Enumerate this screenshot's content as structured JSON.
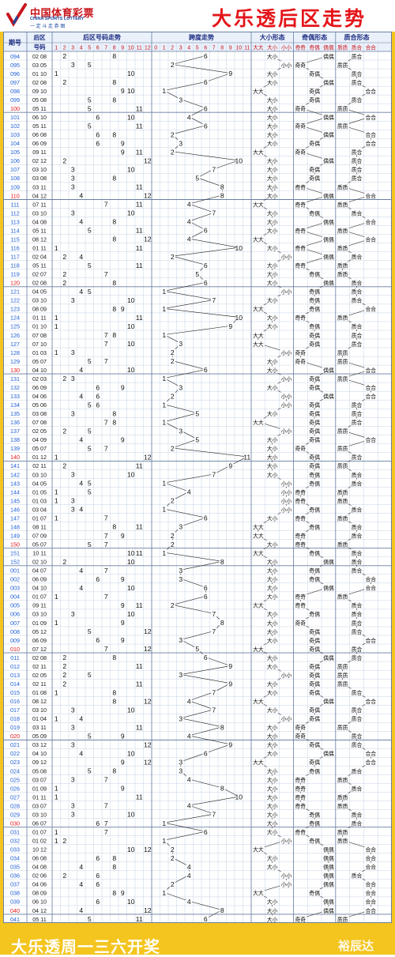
{
  "header": {
    "logo_cn": "中国体育彩票",
    "logo_en": "CHINA SPORTS LOTTERY",
    "logo_slogan": "一 定 斗 走 券 图",
    "title": "大乐透后区走势"
  },
  "footer": {
    "title": "大乐透周一三六开奖",
    "author": "裕辰达"
  },
  "colors": {
    "frame": "#f4c51f",
    "title_red": "#e4151a",
    "issue_blue": "#1e5fd6",
    "grid": "#c5d3e6",
    "group_line": "#6a7fa0"
  },
  "chart_data": {
    "type": "table",
    "headers": {
      "issue": "期号",
      "back_line1": "后区",
      "back_line2": "号码",
      "trend": "后区号码走势",
      "span": "跨度走势",
      "size": "大小形态",
      "parity": "奇偶形态",
      "prime": "质合形态"
    },
    "size_sub": [
      "大大",
      "大小",
      "小小"
    ],
    "parity_sub": [
      "奇奇",
      "奇偶",
      "偶偶"
    ],
    "prime_sub": [
      "质质",
      "质合",
      "合合"
    ],
    "rows": [
      [
        "094",
        [
          2,
          8
        ]
      ],
      [
        "095",
        [
          3,
          5
        ]
      ],
      [
        "096",
        [
          1,
          10
        ]
      ],
      [
        "097",
        [
          2,
          8
        ]
      ],
      [
        "098",
        [
          9,
          10
        ]
      ],
      [
        "099",
        [
          5,
          8
        ]
      ],
      [
        "100",
        [
          5,
          11
        ]
      ],
      [
        "101",
        [
          6,
          10
        ]
      ],
      [
        "102",
        [
          5,
          11
        ]
      ],
      [
        "103",
        [
          6,
          8
        ]
      ],
      [
        "104",
        [
          6,
          9
        ]
      ],
      [
        "105",
        [
          9,
          11
        ]
      ],
      [
        "106",
        [
          2,
          12
        ]
      ],
      [
        "107",
        [
          3,
          10
        ]
      ],
      [
        "108",
        [
          3,
          8
        ]
      ],
      [
        "109",
        [
          3,
          11
        ]
      ],
      [
        "110",
        [
          4,
          12
        ]
      ],
      [
        "111",
        [
          7,
          11
        ]
      ],
      [
        "112",
        [
          3,
          10
        ]
      ],
      [
        "113",
        [
          4,
          8
        ]
      ],
      [
        "114",
        [
          5,
          11
        ]
      ],
      [
        "115",
        [
          8,
          12
        ]
      ],
      [
        "116",
        [
          1,
          11
        ]
      ],
      [
        "117",
        [
          2,
          4
        ]
      ],
      [
        "118",
        [
          5,
          11
        ]
      ],
      [
        "119",
        [
          2,
          7
        ]
      ],
      [
        "120",
        [
          2,
          8
        ]
      ],
      [
        "121",
        [
          4,
          5
        ]
      ],
      [
        "122",
        [
          3,
          10
        ]
      ],
      [
        "123",
        [
          8,
          9
        ]
      ],
      [
        "124",
        [
          1,
          11
        ]
      ],
      [
        "125",
        [
          1,
          10
        ]
      ],
      [
        "126",
        [
          7,
          8
        ]
      ],
      [
        "127",
        [
          7,
          10
        ]
      ],
      [
        "128",
        [
          1,
          3
        ]
      ],
      [
        "129",
        [
          5,
          7
        ]
      ],
      [
        "130",
        [
          4,
          10
        ]
      ],
      [
        "131",
        [
          2,
          3
        ]
      ],
      [
        "132",
        [
          6,
          9
        ]
      ],
      [
        "133",
        [
          4,
          6
        ]
      ],
      [
        "134",
        [
          5,
          6
        ]
      ],
      [
        "135",
        [
          3,
          8
        ]
      ],
      [
        "136",
        [
          7,
          8
        ]
      ],
      [
        "137",
        [
          2,
          5
        ]
      ],
      [
        "138",
        [
          4,
          9
        ]
      ],
      [
        "139",
        [
          5,
          7
        ]
      ],
      [
        "140",
        [
          1,
          12
        ]
      ],
      [
        "141",
        [
          2,
          11
        ]
      ],
      [
        "142",
        [
          3,
          10
        ]
      ],
      [
        "143",
        [
          4,
          5
        ]
      ],
      [
        "144",
        [
          1,
          5
        ]
      ],
      [
        "145",
        [
          1,
          3
        ]
      ],
      [
        "146",
        [
          3,
          4
        ]
      ],
      [
        "147",
        [
          1,
          7
        ]
      ],
      [
        "148",
        [
          8,
          11
        ]
      ],
      [
        "149",
        [
          7,
          9
        ]
      ],
      [
        "150",
        [
          5,
          7
        ]
      ],
      [
        "151",
        [
          10,
          11
        ]
      ],
      [
        "152",
        [
          2,
          10
        ]
      ],
      [
        "001",
        [
          4,
          7
        ]
      ],
      [
        "002",
        [
          6,
          9
        ]
      ],
      [
        "003",
        [
          4,
          10
        ]
      ],
      [
        "004",
        [
          1,
          7
        ]
      ],
      [
        "005",
        [
          9,
          11
        ]
      ],
      [
        "006",
        [
          3,
          10
        ]
      ],
      [
        "007",
        [
          1,
          9
        ]
      ],
      [
        "008",
        [
          5,
          12
        ]
      ],
      [
        "009",
        [
          6,
          9
        ]
      ],
      [
        "010",
        [
          7,
          12
        ]
      ],
      [
        "011",
        [
          2,
          8
        ]
      ],
      [
        "012",
        [
          2,
          11
        ]
      ],
      [
        "013",
        [
          2,
          5
        ]
      ],
      [
        "014",
        [
          2,
          11
        ]
      ],
      [
        "015",
        [
          1,
          8
        ]
      ],
      [
        "016",
        [
          8,
          12
        ]
      ],
      [
        "017",
        [
          3,
          10
        ]
      ],
      [
        "018",
        [
          1,
          4
        ]
      ],
      [
        "019",
        [
          3,
          11
        ]
      ],
      [
        "020",
        [
          5,
          9
        ]
      ],
      [
        "021",
        [
          3,
          12
        ]
      ],
      [
        "022",
        [
          4,
          10
        ]
      ],
      [
        "023",
        [
          9,
          12
        ]
      ],
      [
        "024",
        [
          5,
          8
        ]
      ],
      [
        "025",
        [
          3,
          7
        ]
      ],
      [
        "026",
        [
          1,
          9
        ]
      ],
      [
        "027",
        [
          1,
          11
        ]
      ],
      [
        "028",
        [
          3,
          7
        ]
      ],
      [
        "029",
        [
          3,
          10
        ]
      ],
      [
        "030",
        [
          6,
          7
        ]
      ],
      [
        "031",
        [
          1,
          7
        ]
      ],
      [
        "032",
        [
          1,
          2
        ]
      ],
      [
        "033",
        [
          10,
          12
        ]
      ],
      [
        "034",
        [
          6,
          8
        ]
      ],
      [
        "035",
        [
          4,
          8
        ]
      ],
      [
        "036",
        [
          2,
          6
        ]
      ],
      [
        "037",
        [
          4,
          6
        ]
      ],
      [
        "038",
        [
          8,
          9
        ]
      ],
      [
        "039",
        [
          6,
          10
        ]
      ],
      [
        "040",
        [
          4,
          12
        ]
      ],
      [
        "041",
        [
          5,
          11
        ]
      ]
    ]
  }
}
